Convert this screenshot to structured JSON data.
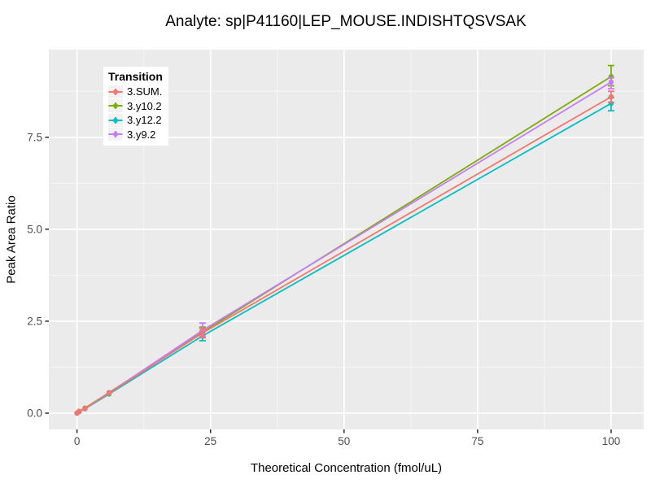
{
  "chart_data": {
    "type": "line",
    "title": "Analyte: sp|P41160|LEP_MOUSE.INDISHTQSVSAK",
    "xlabel": "Theoretical Concentration (fmol/uL)",
    "ylabel": "Peak Area Ratio",
    "legend_title": "Transition",
    "legend_position": "inside-top-left",
    "grid": true,
    "style": {
      "figure_bg": "#ffffff",
      "panel_bg": "#EBEBEB",
      "grid_major": "#FFFFFF",
      "grid_minor": "#F7F7F7",
      "tick_mark_color": "#333333",
      "tick_label_color": "#4D4D4D",
      "legend_key_bg": "#F2F2F2"
    },
    "xlim": [
      -5,
      105
    ],
    "ylim": [
      -0.45,
      9.9
    ],
    "x_ticks": {
      "major": [
        0,
        25,
        50,
        75,
        100
      ],
      "minor": [
        12.5,
        37.5,
        62.5,
        87.5
      ],
      "labels": [
        "0",
        "25",
        "50",
        "75",
        "100"
      ]
    },
    "y_ticks": {
      "major": [
        0,
        2.5,
        5,
        7.5
      ],
      "minor": [
        1.25,
        3.75,
        6.25,
        8.75
      ],
      "labels": [
        "0.0",
        "2.5",
        "5.0",
        "7.5"
      ]
    },
    "x": [
      0,
      0.4,
      1.5,
      6,
      23.5,
      100
    ],
    "series": [
      {
        "name": "3.SUM.",
        "color": "#F8766D",
        "y": [
          0,
          0.05,
          0.13,
          0.54,
          2.18,
          8.6
        ],
        "err_lo": [
          null,
          null,
          null,
          null,
          2.05,
          8.45
        ],
        "err_hi": [
          null,
          null,
          null,
          null,
          2.3,
          8.75
        ]
      },
      {
        "name": "3.y10.2",
        "color": "#7CAE00",
        "y": [
          0,
          0.05,
          0.14,
          0.56,
          2.2,
          9.15
        ],
        "err_lo": [
          null,
          null,
          null,
          null,
          2.06,
          8.9
        ],
        "err_hi": [
          null,
          null,
          null,
          null,
          2.34,
          9.45
        ]
      },
      {
        "name": "3.y12.2",
        "color": "#00BFC4",
        "y": [
          0,
          0.04,
          0.12,
          0.52,
          2.1,
          8.42
        ],
        "err_lo": [
          null,
          null,
          null,
          null,
          1.97,
          8.22
        ],
        "err_hi": [
          null,
          null,
          null,
          null,
          2.23,
          8.58
        ]
      },
      {
        "name": "3.y9.2",
        "color": "#C77CFF",
        "y": [
          0,
          0.05,
          0.13,
          0.55,
          2.25,
          9.0
        ],
        "err_lo": [
          null,
          null,
          null,
          null,
          2.1,
          8.82
        ],
        "err_hi": [
          null,
          null,
          null,
          null,
          2.45,
          9.12
        ]
      }
    ],
    "draw_order": [
      1,
      2,
      3,
      0
    ]
  }
}
